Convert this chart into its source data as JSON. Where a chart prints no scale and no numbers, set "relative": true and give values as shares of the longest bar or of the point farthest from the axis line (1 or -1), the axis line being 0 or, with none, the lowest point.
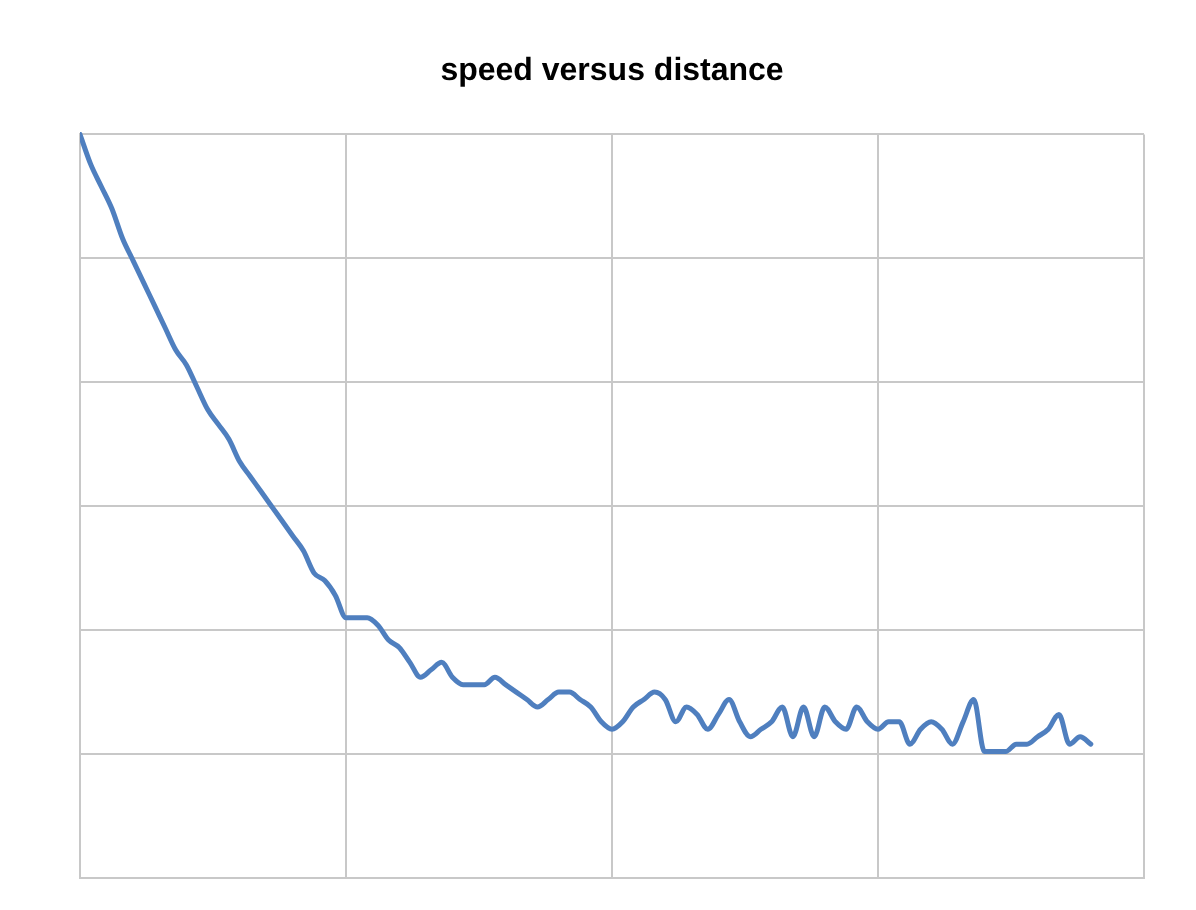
{
  "chart_data": {
    "type": "line",
    "title": "speed versus distance",
    "relative": true,
    "grid": true,
    "marker": "none",
    "line_style": "solid",
    "categories": [
      null,
      null,
      null,
      null,
      null,
      null,
      null,
      null,
      null,
      null,
      null,
      null,
      null,
      null,
      null,
      null,
      null,
      null,
      null,
      null,
      null,
      null,
      null,
      null,
      null,
      null,
      null,
      null,
      null,
      null,
      null,
      null,
      null,
      null,
      null,
      null,
      null,
      null,
      null,
      null,
      null,
      null,
      null,
      null,
      null,
      null,
      null,
      null,
      null,
      null,
      null,
      null,
      null,
      null,
      null,
      null,
      null,
      null,
      null,
      null,
      null,
      null,
      null,
      null,
      null,
      null,
      null,
      null,
      null,
      null,
      null,
      null,
      null,
      null,
      null,
      null,
      null,
      null,
      null,
      null,
      null,
      null,
      null,
      null,
      null,
      null,
      null,
      null,
      null,
      null,
      null,
      null,
      null,
      null,
      null,
      null,
      null,
      null,
      null,
      null,
      null
    ],
    "series": [
      {
        "color": "#4f7fbf",
        "values": [
          1.0,
          0.96,
          0.93,
          0.9,
          0.86,
          0.83,
          0.8,
          0.77,
          0.74,
          0.71,
          0.69,
          0.66,
          0.63,
          0.61,
          0.59,
          0.56,
          0.54,
          0.52,
          0.5,
          0.48,
          0.46,
          0.44,
          0.41,
          0.4,
          0.38,
          0.35,
          0.35,
          0.35,
          0.34,
          0.32,
          0.31,
          0.29,
          0.27,
          0.28,
          0.29,
          0.27,
          0.26,
          0.26,
          0.26,
          0.27,
          0.26,
          0.25,
          0.24,
          0.23,
          0.24,
          0.25,
          0.25,
          0.24,
          0.23,
          0.21,
          0.2,
          0.21,
          0.23,
          0.24,
          0.25,
          0.24,
          0.21,
          0.23,
          0.22,
          0.2,
          0.22,
          0.24,
          0.21,
          0.19,
          0.2,
          0.21,
          0.23,
          0.19,
          0.23,
          0.19,
          0.23,
          0.21,
          0.2,
          0.23,
          0.21,
          0.2,
          0.21,
          0.21,
          0.18,
          0.2,
          0.21,
          0.2,
          0.18,
          0.21,
          0.24,
          0.17,
          0.17,
          0.17,
          0.18,
          0.18,
          0.19,
          0.2,
          0.22,
          0.18,
          0.19,
          0.18,
          null,
          null,
          null,
          null,
          null
        ]
      }
    ]
  }
}
